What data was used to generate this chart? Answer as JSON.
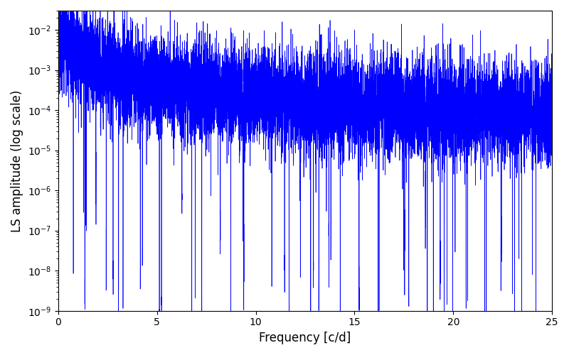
{
  "title": "",
  "xlabel": "Frequency [c/d]",
  "ylabel": "LS amplitude (log scale)",
  "xlim": [
    0,
    25
  ],
  "ylim": [
    1e-09,
    0.03
  ],
  "line_color": "#0000ff",
  "line_width": 0.5,
  "background_color": "#ffffff",
  "figsize": [
    8.0,
    5.0
  ],
  "dpi": 100,
  "freq_max": 25.0,
  "n_points": 10000,
  "seed": 42
}
